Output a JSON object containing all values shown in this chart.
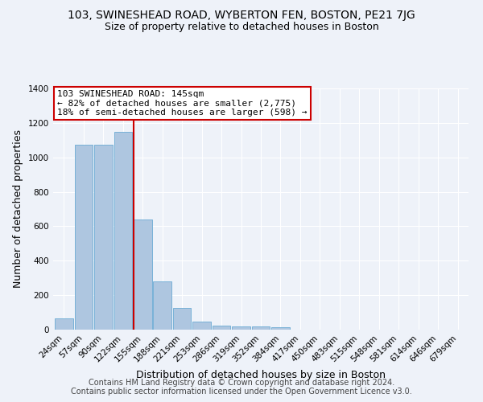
{
  "title": "103, SWINESHEAD ROAD, WYBERTON FEN, BOSTON, PE21 7JG",
  "subtitle": "Size of property relative to detached houses in Boston",
  "xlabel": "Distribution of detached houses by size in Boston",
  "ylabel": "Number of detached properties",
  "categories": [
    "24sqm",
    "57sqm",
    "90sqm",
    "122sqm",
    "155sqm",
    "188sqm",
    "221sqm",
    "253sqm",
    "286sqm",
    "319sqm",
    "352sqm",
    "384sqm",
    "417sqm",
    "450sqm",
    "483sqm",
    "515sqm",
    "548sqm",
    "581sqm",
    "614sqm",
    "646sqm",
    "679sqm"
  ],
  "values": [
    65,
    1075,
    1075,
    1150,
    640,
    280,
    125,
    45,
    25,
    20,
    20,
    15,
    0,
    0,
    0,
    0,
    0,
    0,
    0,
    0,
    0
  ],
  "bar_color": "#aec6e0",
  "bar_edgecolor": "#6aaad4",
  "red_line_index": 4,
  "red_line_color": "#cc0000",
  "annotation_text": "103 SWINESHEAD ROAD: 145sqm\n← 82% of detached houses are smaller (2,775)\n18% of semi-detached houses are larger (598) →",
  "annotation_box_color": "#cc0000",
  "ylim": [
    0,
    1400
  ],
  "yticks": [
    0,
    200,
    400,
    600,
    800,
    1000,
    1200,
    1400
  ],
  "background_color": "#eef2f9",
  "grid_color": "#ffffff",
  "footer_line1": "Contains HM Land Registry data © Crown copyright and database right 2024.",
  "footer_line2": "Contains public sector information licensed under the Open Government Licence v3.0.",
  "title_fontsize": 10,
  "subtitle_fontsize": 9,
  "annot_fontsize": 8,
  "axis_label_fontsize": 9,
  "tick_fontsize": 7.5,
  "footer_fontsize": 7
}
